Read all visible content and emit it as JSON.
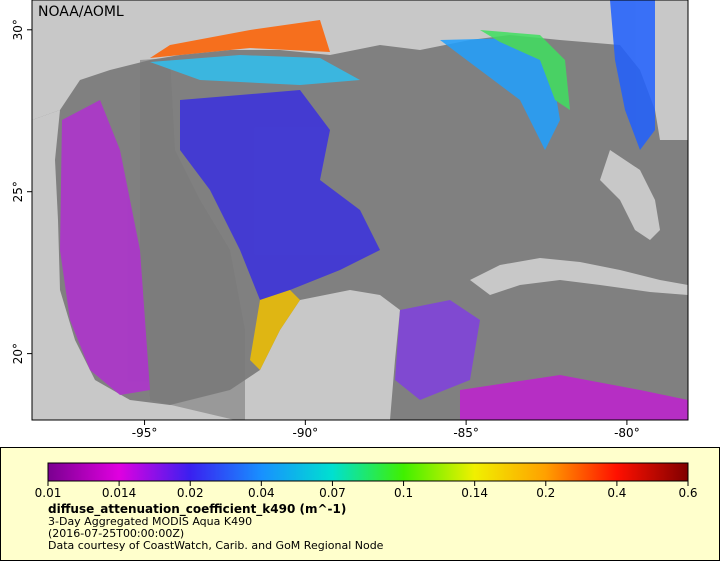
{
  "map": {
    "title": "NOAA/AOML",
    "xlim": [
      -98.5,
      -78.1
    ],
    "ylim": [
      17.95,
      30.92
    ],
    "xticks": [
      {
        "value": -95,
        "label": "-95°"
      },
      {
        "value": -90,
        "label": "-90°"
      },
      {
        "value": -85,
        "label": "-85°"
      },
      {
        "value": -80,
        "label": "-80°"
      }
    ],
    "yticks": [
      {
        "value": 20,
        "label": "20°"
      },
      {
        "value": 25,
        "label": "25°"
      },
      {
        "value": 30,
        "label": "30°"
      }
    ]
  },
  "colorbar": {
    "scale": "log",
    "ticks": [
      0.01,
      0.014,
      0.02,
      0.04,
      0.07,
      0.1,
      0.14,
      0.2,
      0.4,
      0.6
    ],
    "colors": [
      "#7a0090",
      "#e000e0",
      "#3a20f0",
      "#1890ff",
      "#00e0d0",
      "#40f000",
      "#f0f000",
      "#ffa000",
      "#ff1000",
      "#800000"
    ]
  },
  "caption": {
    "variable": "diffuse_attenuation_coefficient_k490 (m^-1)",
    "product": "3-Day Aggregated MODIS Aqua K490",
    "time": "(2016-07-25T00:00:00Z)",
    "credit": "Data courtesy of CoastWatch, Carib. and GoM Regional Node"
  }
}
